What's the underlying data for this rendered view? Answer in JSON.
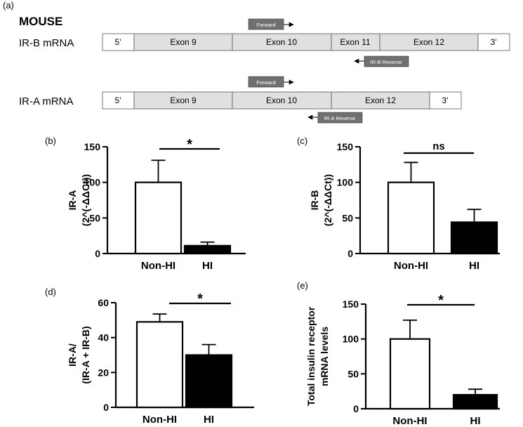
{
  "diagram": {
    "panel_label": "(a)",
    "species": "MOUSE",
    "irb": {
      "label": "IR-B mRNA",
      "segments": [
        "5'",
        "Exon 9",
        "Exon 10",
        "Exon 11",
        "Exon 12",
        "3'"
      ],
      "forward": "Forward",
      "reverse": "IR-B Reverse"
    },
    "ira": {
      "label": "IR-A mRNA",
      "segments": [
        "5'",
        "Exon 9",
        "Exon 10",
        "Exon 12",
        "3'"
      ],
      "forward": "Forward",
      "reverse": "IR-A Reverse"
    }
  },
  "colors": {
    "exon_fill": "#e0e0e0",
    "utr_fill": "#ffffff",
    "primer_fill": "#707070",
    "bar_hi": "#000000"
  },
  "chart_data": [
    {
      "panel": "(b)",
      "type": "bar",
      "categories": [
        "Non-HI",
        "HI"
      ],
      "values": [
        100,
        11
      ],
      "errors": [
        31,
        5
      ],
      "ylabel_lines": [
        "IR-A",
        "(2^(-ΔΔCt))"
      ],
      "ylim": [
        0,
        150
      ],
      "yticks": [
        0,
        50,
        100,
        150
      ],
      "significance": "*"
    },
    {
      "panel": "(c)",
      "type": "bar",
      "categories": [
        "Non-HI",
        "HI"
      ],
      "values": [
        100,
        44
      ],
      "errors": [
        28,
        18
      ],
      "ylabel_lines": [
        "IR-B",
        "(2^(-ΔΔCt))"
      ],
      "ylim": [
        0,
        150
      ],
      "yticks": [
        0,
        50,
        100,
        150
      ],
      "significance": "ns"
    },
    {
      "panel": "(d)",
      "type": "bar",
      "categories": [
        "Non-HI",
        "HI"
      ],
      "values": [
        49,
        30
      ],
      "errors": [
        4.5,
        6
      ],
      "ylabel_lines": [
        "IR-A/",
        "(IR-A + IR-B)"
      ],
      "ylim": [
        0,
        60
      ],
      "yticks": [
        0,
        20,
        40,
        60
      ],
      "significance": "*"
    },
    {
      "panel": "(e)",
      "type": "bar",
      "categories": [
        "Non-HI",
        "HI"
      ],
      "values": [
        100,
        20
      ],
      "errors": [
        27,
        8
      ],
      "ylabel_lines": [
        "Total insulin receptor",
        "mRNA levels"
      ],
      "ylim": [
        0,
        150
      ],
      "yticks": [
        0,
        50,
        100,
        150
      ],
      "significance": "*"
    }
  ]
}
